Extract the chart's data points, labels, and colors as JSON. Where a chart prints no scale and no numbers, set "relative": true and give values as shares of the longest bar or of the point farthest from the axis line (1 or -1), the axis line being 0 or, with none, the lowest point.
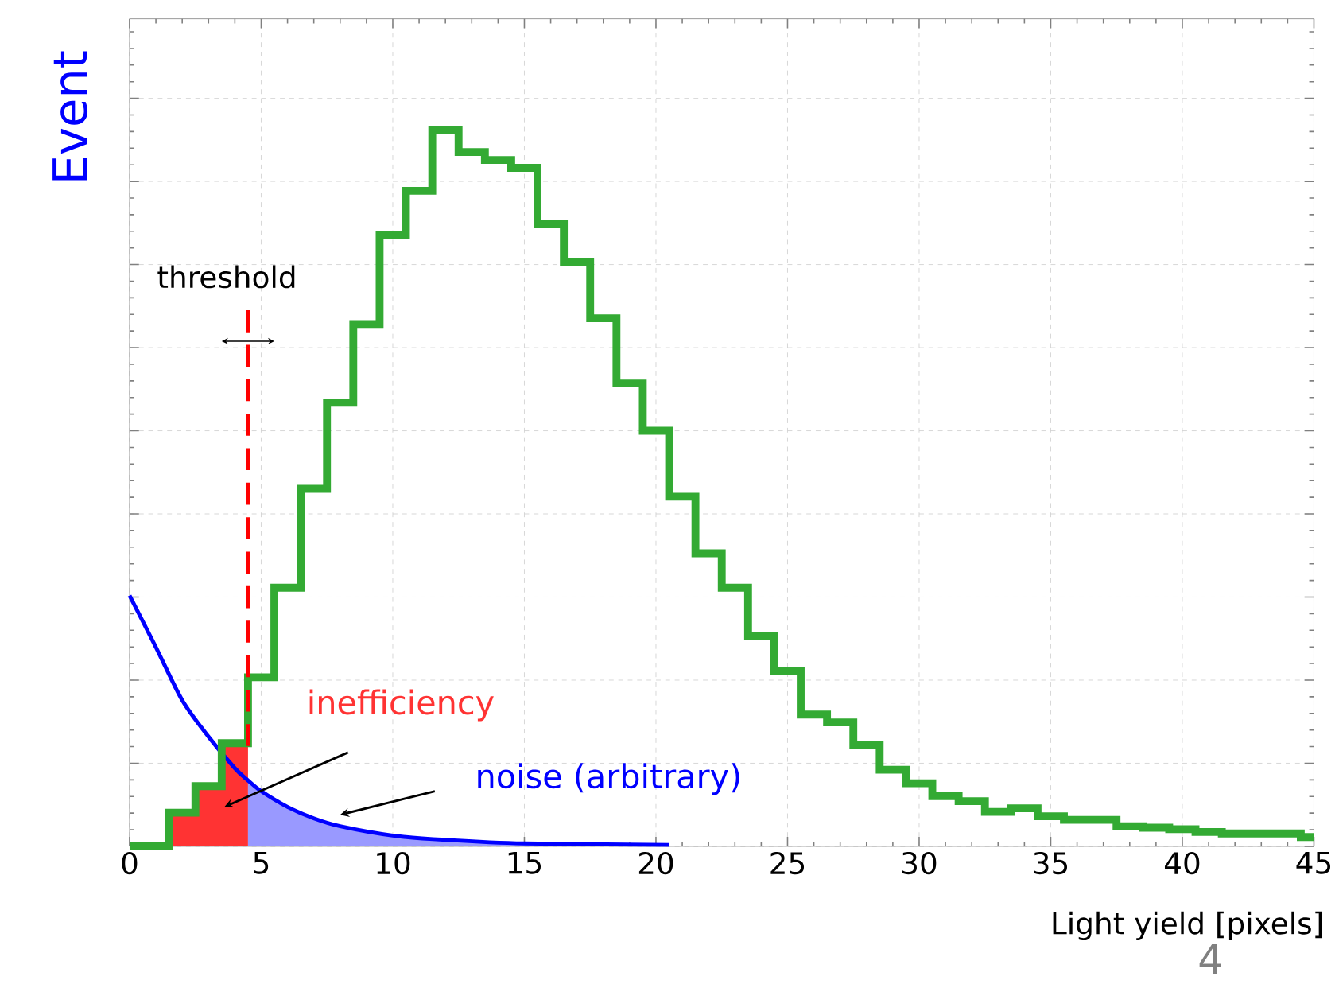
{
  "chart_data": {
    "type": "histogram",
    "relative": true,
    "xlabel": "Light yield [pixels]",
    "ylabel": "Event",
    "xlim": [
      0,
      45
    ],
    "xticks": [
      0,
      5,
      10,
      15,
      20,
      25,
      30,
      35,
      40,
      45
    ],
    "grid": true,
    "series": [
      {
        "type": "histogram",
        "color": "#ff3333",
        "bins": [
          1.5,
          2.5,
          3.5,
          4.5
        ],
        "values": [
          0.047,
          0.084,
          0.144
        ]
      },
      {
        "type": "area",
        "color": "#9999ff",
        "x": [
          4.5,
          5,
          6,
          7,
          8,
          10,
          12,
          15,
          20.5
        ],
        "values": [
          0.092,
          0.077,
          0.055,
          0.039,
          0.028,
          0.015,
          0.009,
          0.004,
          0.002
        ]
      },
      {
        "type": "line",
        "color": "#0000ff",
        "x": [
          0,
          1,
          2,
          3,
          4,
          4.5,
          5,
          6,
          7,
          8,
          10,
          12,
          15,
          20.5
        ],
        "values": [
          0.35,
          0.278,
          0.204,
          0.153,
          0.109,
          0.092,
          0.077,
          0.055,
          0.039,
          0.028,
          0.015,
          0.009,
          0.004,
          0.002
        ]
      },
      {
        "color": "#33aa33",
        "bins": [
          0,
          0.5,
          1.5,
          2.5,
          3.5,
          4.5,
          5.5,
          6.5,
          7.5,
          8.5,
          9.5,
          10.5,
          11.5,
          12.5,
          13.5,
          14.5,
          15.5,
          16.5,
          17.5,
          18.5,
          19.5,
          20.5,
          21.5,
          22.5,
          23.5,
          24.5,
          25.5,
          26.5,
          27.5,
          28.5,
          29.5,
          30.5,
          31.5,
          32.5,
          33.5,
          34.5,
          35.5,
          36.5,
          37.5,
          38.5,
          39.5,
          40.5,
          41.5,
          42.5,
          43.5,
          44.5,
          45
        ],
        "values": [
          0,
          0,
          0.047,
          0.084,
          0.144,
          0.236,
          0.361,
          0.499,
          0.619,
          0.729,
          0.853,
          0.915,
          1,
          0.969,
          0.958,
          0.947,
          0.869,
          0.816,
          0.737,
          0.646,
          0.58,
          0.488,
          0.409,
          0.361,
          0.293,
          0.245,
          0.184,
          0.173,
          0.142,
          0.107,
          0.088,
          0.07,
          0.063,
          0.048,
          0.053,
          0.042,
          0.037,
          0.037,
          0.028,
          0.026,
          0.024,
          0.02,
          0.018,
          0.018,
          0.018,
          0.013
        ]
      }
    ],
    "ref_lines": [
      {
        "axis": "x",
        "value": 4.5,
        "label": "threshold",
        "color": "#ff0000",
        "line_style": "dashed"
      }
    ],
    "annotations": [
      "inefficiency",
      "noise (arbitrary)",
      "4"
    ]
  }
}
